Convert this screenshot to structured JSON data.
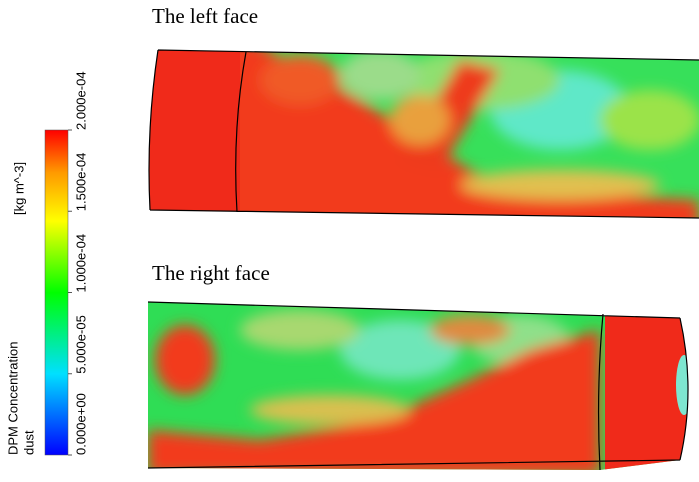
{
  "colorbar": {
    "title": "DPM Concentration",
    "subtitle": "dust",
    "unit": "[kg m^-3]",
    "ticks": [
      {
        "value": 0,
        "label": "0.000e+00"
      },
      {
        "value": 5e-05,
        "label": "5.000e-05"
      },
      {
        "value": 0.0001,
        "label": "1.000e-04"
      },
      {
        "value": 0.00015,
        "label": "1.500e-04"
      },
      {
        "value": 0.0002,
        "label": "2.000e-04"
      }
    ]
  },
  "panels": [
    {
      "title": "The left face"
    },
    {
      "title": "The right face"
    }
  ]
}
